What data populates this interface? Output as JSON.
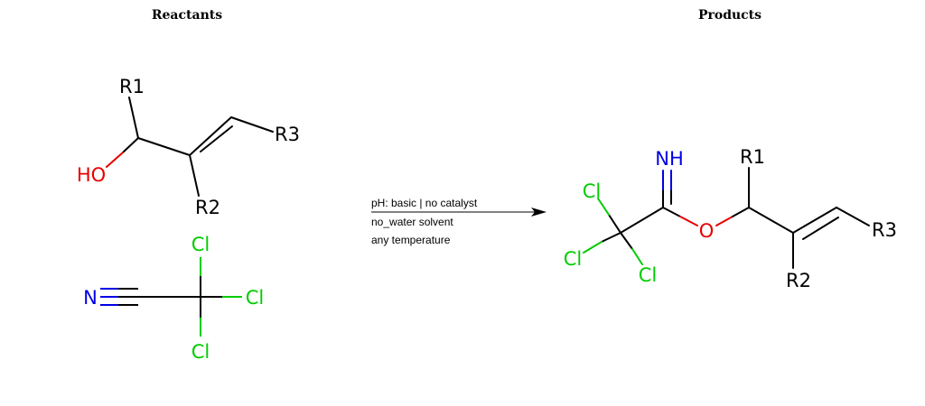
{
  "headers": {
    "reactants": "Reactants",
    "products": "Products"
  },
  "reaction": {
    "conditions": [
      "pH: basic | no catalyst",
      "no_water solvent",
      "any temperature"
    ]
  },
  "reactant1": {
    "r1": "R1",
    "r2": "R2",
    "r3": "R3",
    "oh": "HO"
  },
  "reactant2": {
    "n": "N",
    "cl_top": "Cl",
    "cl_right": "Cl",
    "cl_bottom": "Cl"
  },
  "product": {
    "nh": "NH",
    "o": "O",
    "cl_a": "Cl",
    "cl_b": "Cl",
    "cl_c": "Cl",
    "r1": "R1",
    "r2": "R2",
    "r3": "R3"
  },
  "colors": {
    "bond": "#000000",
    "oxygen": "#e60000",
    "nitrogen": "#0000e6",
    "chlorine": "#00cc00"
  }
}
